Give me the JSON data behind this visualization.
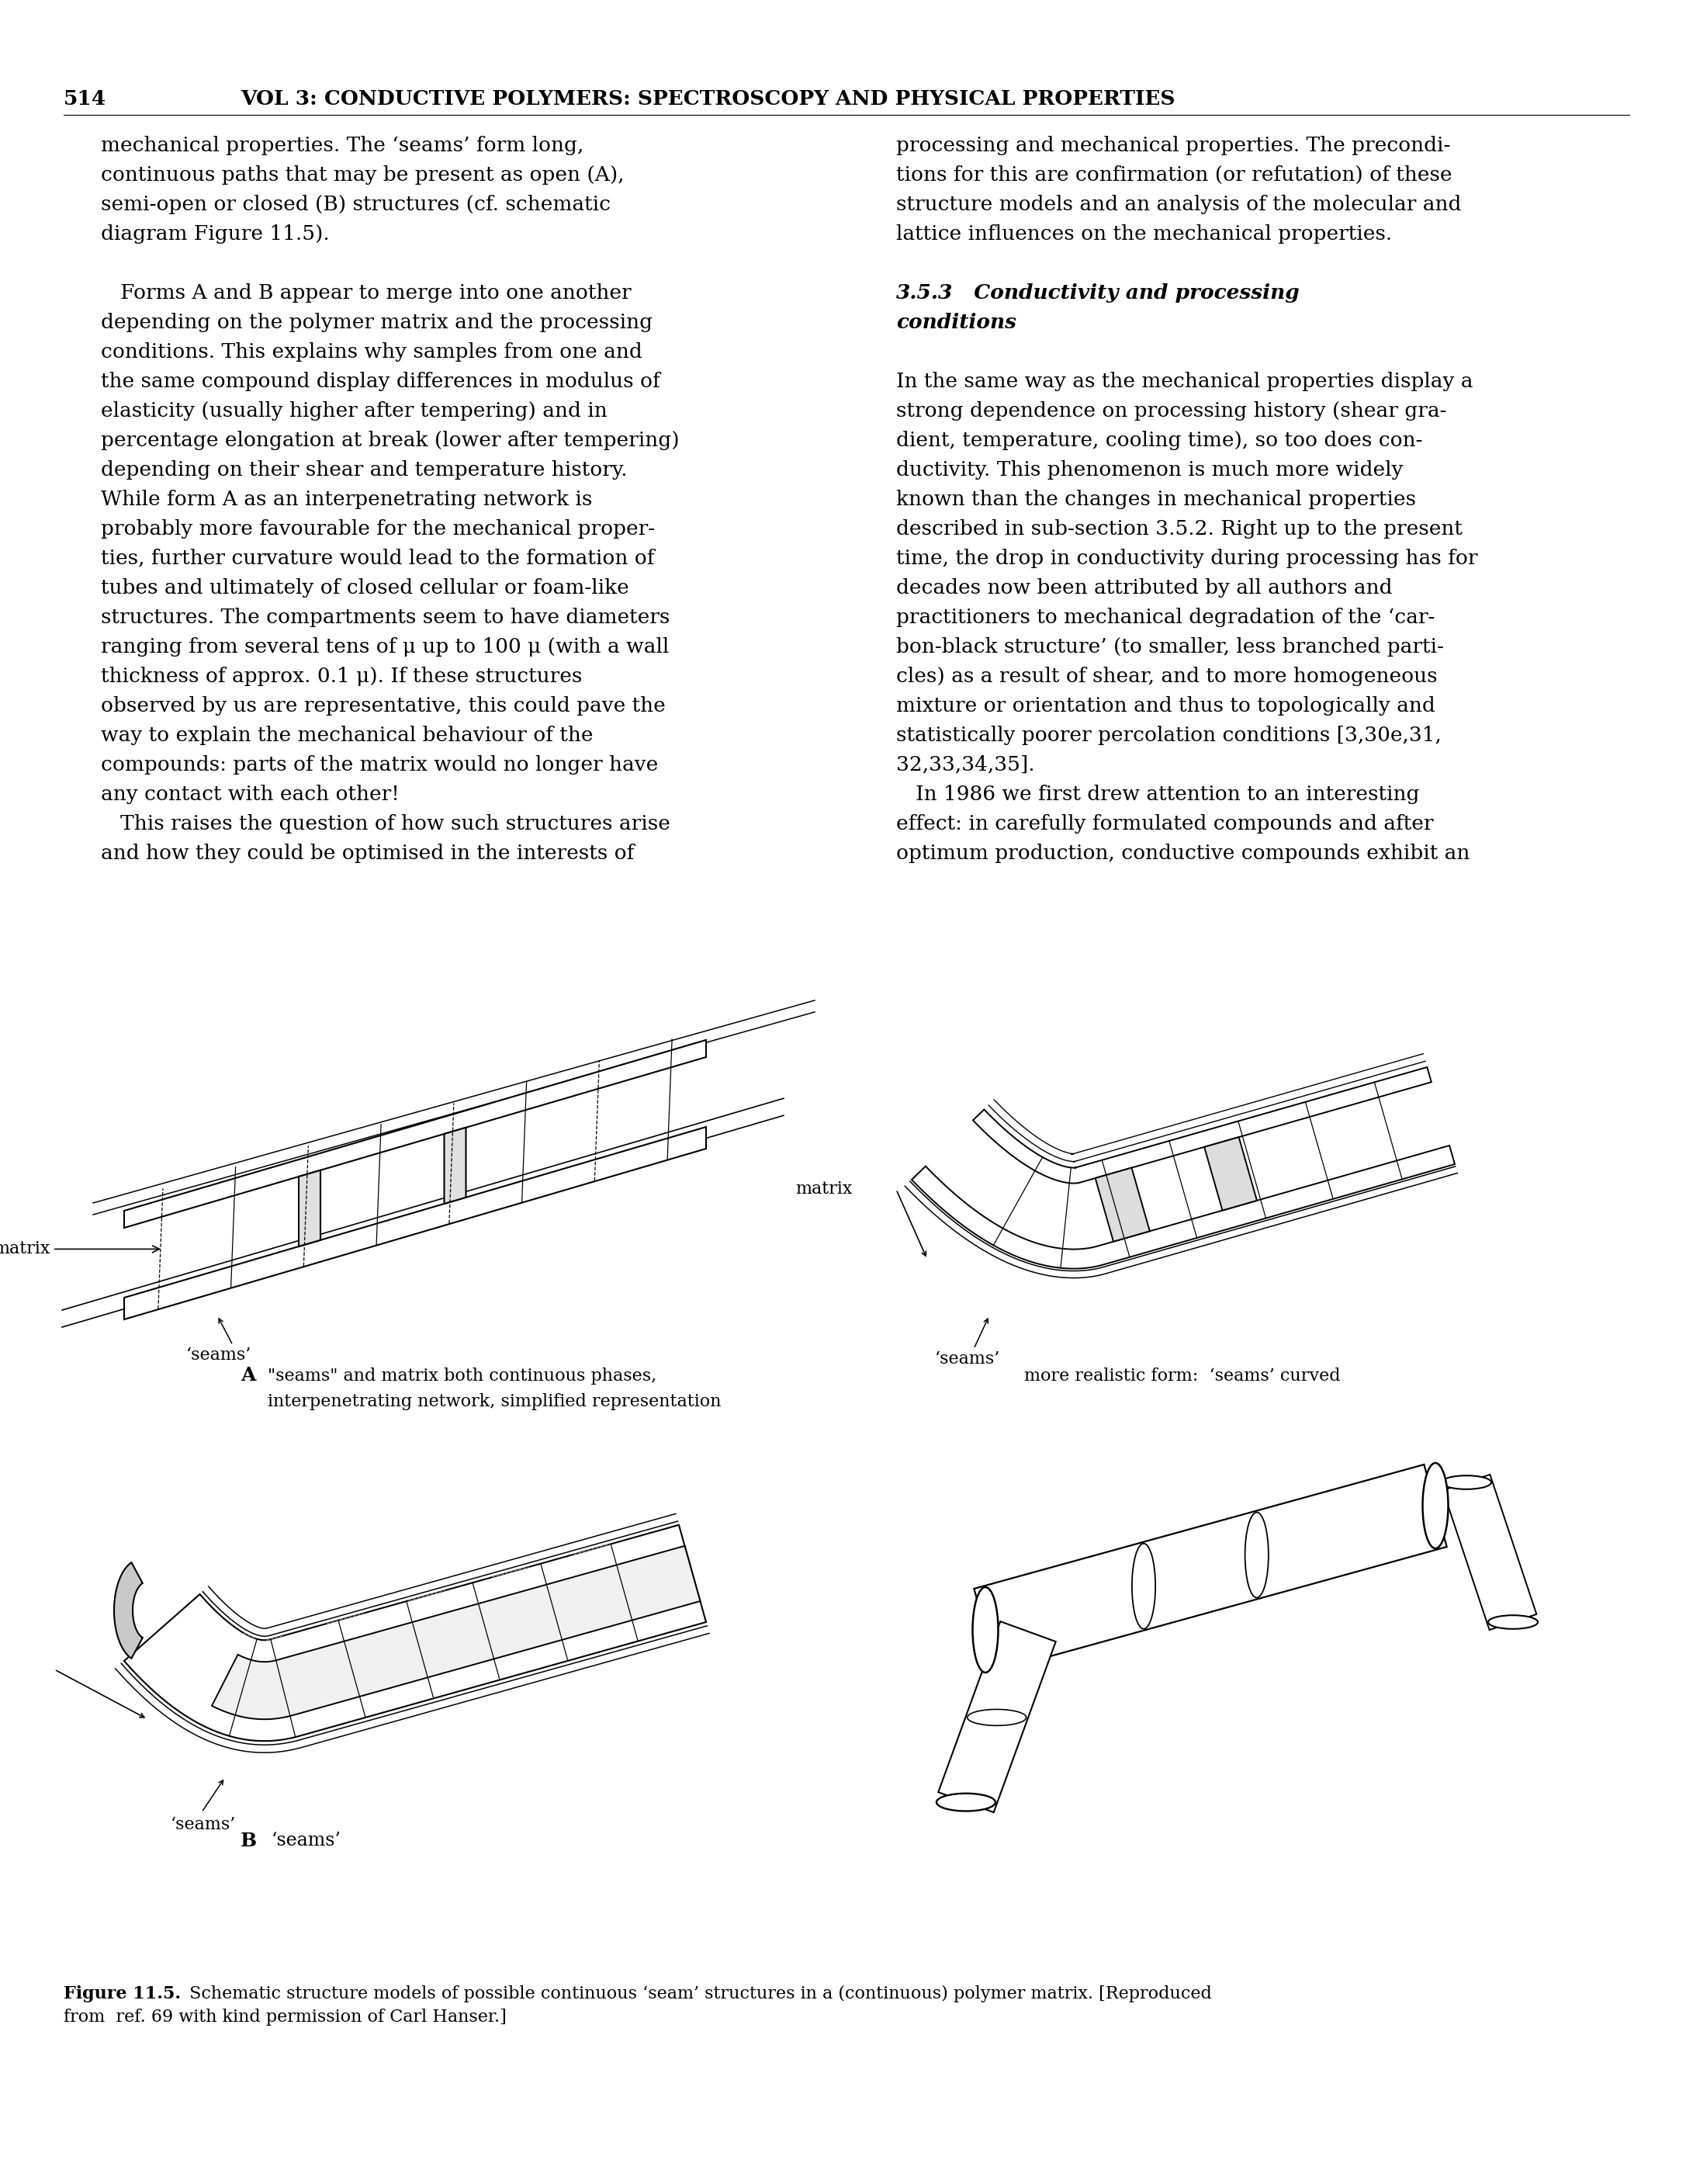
{
  "page_number": "514",
  "header": "VOL 3: CONDUCTIVE POLYMERS: SPECTROSCOPY AND PHYSICAL PROPERTIES",
  "background_color": "#ffffff",
  "text_color": "#000000",
  "left_col_lines": [
    "mechanical properties. The ‘seams’ form long,",
    "continuous paths that may be present as open (A),",
    "semi-open or closed (B) structures (cf. schematic",
    "diagram Figure 11.5).",
    "",
    "   Forms A and B appear to merge into one another",
    "depending on the polymer matrix and the processing",
    "conditions. This explains why samples from one and",
    "the same compound display differences in modulus of",
    "elasticity (usually higher after tempering) and in",
    "percentage elongation at break (lower after tempering)",
    "depending on their shear and temperature history.",
    "While form A as an interpenetrating network is",
    "probably more favourable for the mechanical proper-",
    "ties, further curvature would lead to the formation of",
    "tubes and ultimately of closed cellular or foam-like",
    "structures. The compartments seem to have diameters",
    "ranging from several tens of μ up to 100 μ (with a wall",
    "thickness of approx. 0.1 μ). If these structures",
    "observed by us are representative, this could pave the",
    "way to explain the mechanical behaviour of the",
    "compounds: parts of the matrix would no longer have",
    "any contact with each other!",
    "   This raises the question of how such structures arise",
    "and how they could be optimised in the interests of"
  ],
  "right_col_lines": [
    "processing and mechanical properties. The precondi-",
    "tions for this are confirmation (or refutation) of these",
    "structure models and an analysis of the molecular and",
    "lattice influences on the mechanical properties.",
    "",
    "3.5.3   Conductivity and processing",
    "conditions",
    "",
    "In the same way as the mechanical properties display a",
    "strong dependence on processing history (shear gra-",
    "dient, temperature, cooling time), so too does con-",
    "ductivity. This phenomenon is much more widely",
    "known than the changes in mechanical properties",
    "described in sub-section 3.5.2. Right up to the present",
    "time, the drop in conductivity during processing has for",
    "decades now been attributed by all authors and",
    "practitioners to mechanical degradation of the ‘car-",
    "bon-black structure’ (to smaller, less branched parti-",
    "cles) as a result of shear, and to more homogeneous",
    "mixture or orientation and thus to topologically and",
    "statistically poorer percolation conditions [3,30e,31,",
    "32,33,34,35].",
    "   In 1986 we first drew attention to an interesting",
    "effect: in carefully formulated compounds and after",
    "optimum production, conductive compounds exhibit an"
  ],
  "caption_A_label": "A",
  "caption_A_text_line1": "\"seams\" and matrix both continuous phases,",
  "caption_A_text_line2": "interpenetrating network, simplified representation",
  "caption_top_right": "more realistic form:  ‘seams’ curved",
  "caption_B_label": "B",
  "caption_B_text": "‘seams’",
  "fig_caption_bold": "Figure 11.5.",
  "fig_caption_rest_line1": " Schematic structure models of possible continuous ‘seam’ structures in a (continuous) polymer matrix. [Reproduced",
  "fig_caption_rest_line2": "from  ref. 69 with kind permission of Carl Hanser.]",
  "label_matrix": "matrix",
  "label_seams": "‘seams’",
  "body_fontsize": 19,
  "header_fontsize": 19,
  "caption_fontsize": 16,
  "fig_label_fontsize": 18
}
